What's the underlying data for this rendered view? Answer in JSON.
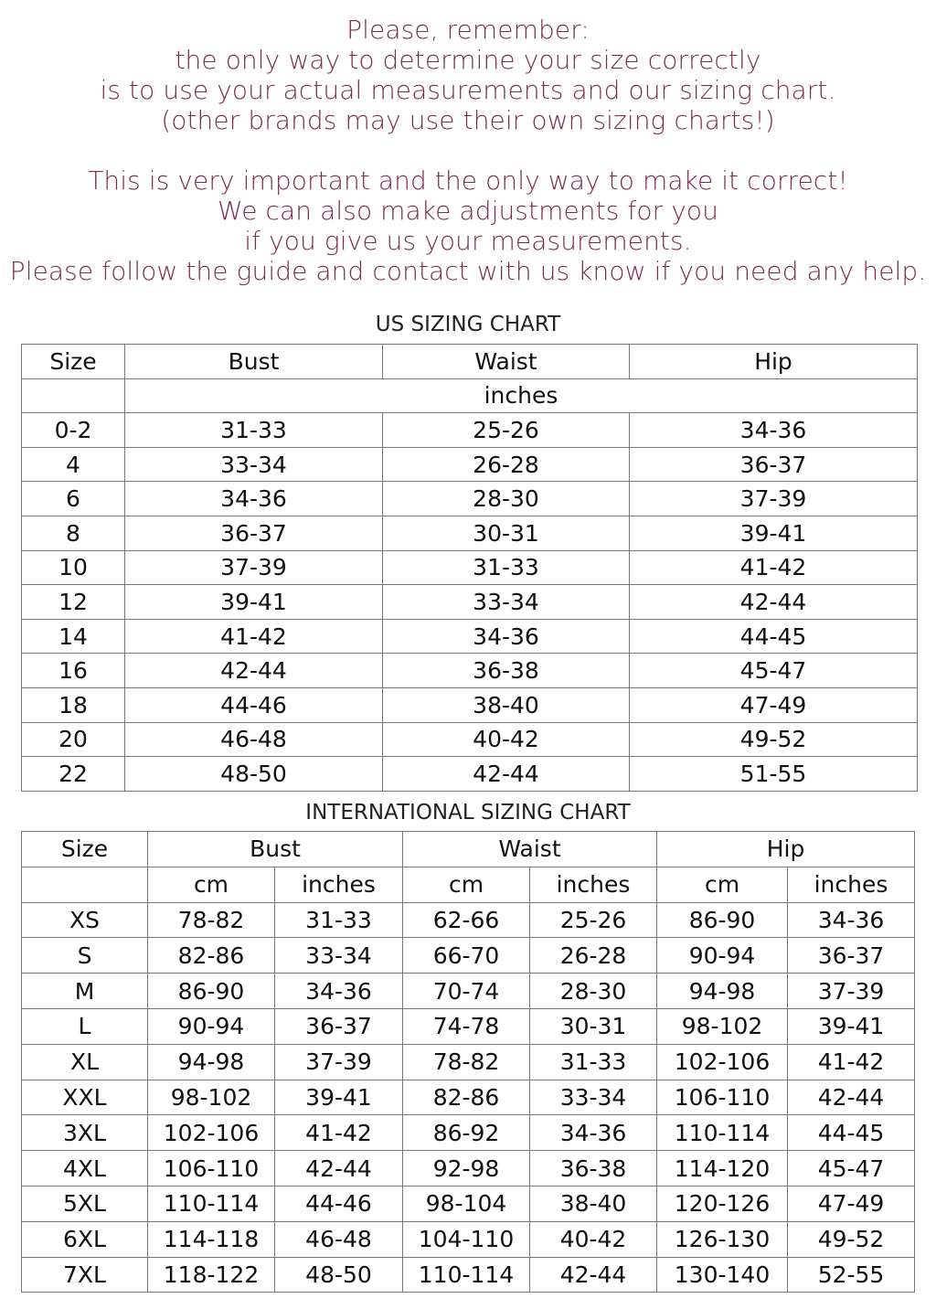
{
  "notice": {
    "lines": [
      "Please, remember:",
      "the only way to determine your size correctly",
      "is to use your actual measurements and our sizing chart.",
      "(other brands may use their own sizing charts!)",
      "",
      "This is very important and the only way to make it correct!",
      "We can also make adjustments for you",
      "if you give us your measurements.",
      "Please follow the guide and contact with us know if you need any help."
    ],
    "color": "#7a2b4e"
  },
  "us_chart": {
    "title": "US SIZING CHART",
    "headers": [
      "Size",
      "Bust",
      "Waist",
      "Hip"
    ],
    "unit": "inches",
    "rows": [
      [
        "0-2",
        "31-33",
        "25-26",
        "34-36"
      ],
      [
        "4",
        "33-34",
        "26-28",
        "36-37"
      ],
      [
        "6",
        "34-36",
        "28-30",
        "37-39"
      ],
      [
        "8",
        "36-37",
        "30-31",
        "39-41"
      ],
      [
        "10",
        "37-39",
        "31-33",
        "41-42"
      ],
      [
        "12",
        "39-41",
        "33-34",
        "42-44"
      ],
      [
        "14",
        "41-42",
        "34-36",
        "44-45"
      ],
      [
        "16",
        "42-44",
        "36-38",
        "45-47"
      ],
      [
        "18",
        "44-46",
        "38-40",
        "47-49"
      ],
      [
        "20",
        "46-48",
        "40-42",
        "49-52"
      ],
      [
        "22",
        "48-50",
        "42-44",
        "51-55"
      ]
    ]
  },
  "intl_chart": {
    "title": "INTERNATIONAL SIZING CHART",
    "headers": [
      "Size",
      "Bust",
      "Waist",
      "Hip"
    ],
    "subheaders": [
      "cm",
      "inches",
      "cm",
      "inches",
      "cm",
      "inches"
    ],
    "rows": [
      [
        "XS",
        "78-82",
        "31-33",
        "62-66",
        "25-26",
        "86-90",
        "34-36"
      ],
      [
        "S",
        "82-86",
        "33-34",
        "66-70",
        "26-28",
        "90-94",
        "36-37"
      ],
      [
        "M",
        "86-90",
        "34-36",
        "70-74",
        "28-30",
        "94-98",
        "37-39"
      ],
      [
        "L",
        "90-94",
        "36-37",
        "74-78",
        "30-31",
        "98-102",
        "39-41"
      ],
      [
        "XL",
        "94-98",
        "37-39",
        "78-82",
        "31-33",
        "102-106",
        "41-42"
      ],
      [
        "XXL",
        "98-102",
        "39-41",
        "82-86",
        "33-34",
        "106-110",
        "42-44"
      ],
      [
        "3XL",
        "102-106",
        "41-42",
        "86-92",
        "34-36",
        "110-114",
        "44-45"
      ],
      [
        "4XL",
        "106-110",
        "42-44",
        "92-98",
        "36-38",
        "114-120",
        "45-47"
      ],
      [
        "5XL",
        "110-114",
        "44-46",
        "98-104",
        "38-40",
        "120-126",
        "47-49"
      ],
      [
        "6XL",
        "114-118",
        "46-48",
        "104-110",
        "40-42",
        "126-130",
        "49-52"
      ],
      [
        "7XL",
        "118-122",
        "48-50",
        "110-114",
        "42-44",
        "130-140",
        "52-55"
      ]
    ]
  }
}
